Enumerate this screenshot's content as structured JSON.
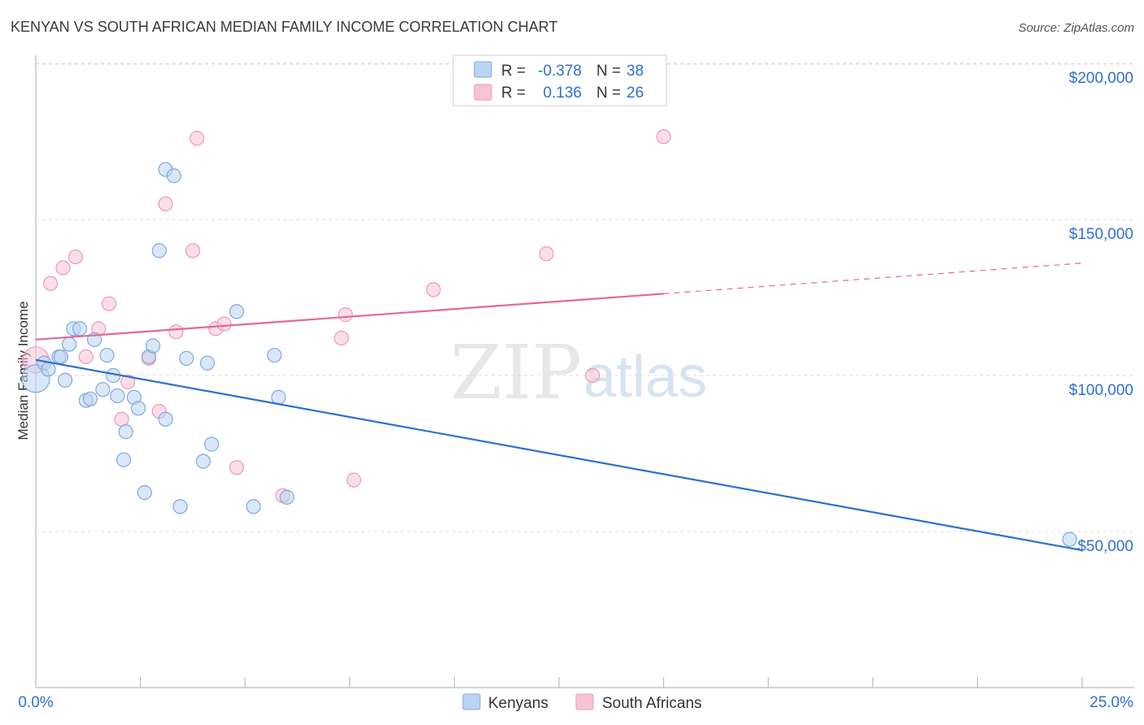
{
  "chart_data": {
    "type": "scatter",
    "title": "KENYAN VS SOUTH AFRICAN MEDIAN FAMILY INCOME CORRELATION CHART",
    "source": "Source: ZipAtlas.com",
    "xlabel": "",
    "ylabel": "Median Family Income",
    "xlim": [
      0,
      25
    ],
    "ylim": [
      0,
      205000
    ],
    "x_tick_labels": [
      "0.0%",
      "25.0%"
    ],
    "y_ticks": [
      50000,
      100000,
      150000,
      200000
    ],
    "y_tick_labels": [
      "$50,000",
      "$100,000",
      "$150,000",
      "$200,000"
    ],
    "watermark": {
      "zip": "ZIP",
      "atlas": "atlas"
    },
    "legend": {
      "rows": [
        {
          "r_label": "R =",
          "r_value": "-0.378",
          "n_label": "N =",
          "n_value": "38"
        },
        {
          "r_label": "R =",
          "r_value": "0.136",
          "n_label": "N =",
          "n_value": "26"
        }
      ]
    },
    "colors": {
      "kenyans_fill": "#bcd3f3",
      "kenyans_stroke": "#7ea9e0",
      "kenyans_line": "#2b6fd0",
      "south_africans_fill": "#f7c3d3",
      "south_africans_stroke": "#ec9ab5",
      "south_africans_line": "#e36a91",
      "value_text": "#2f6fd3",
      "grid": "#dddddd",
      "axis": "#bbbbbb"
    },
    "series": [
      {
        "name": "Kenyans",
        "trend": {
          "x_start": 0,
          "y_start": 105000,
          "x_end": 25,
          "y_end": 44000,
          "solid_until": 25
        },
        "points": [
          [
            0.0,
            99000
          ],
          [
            0.2,
            104000
          ],
          [
            0.3,
            102000
          ],
          [
            0.55,
            106000
          ],
          [
            0.6,
            106000
          ],
          [
            0.7,
            98500
          ],
          [
            0.8,
            110000
          ],
          [
            0.9,
            115000
          ],
          [
            1.05,
            115000
          ],
          [
            1.2,
            92000
          ],
          [
            1.3,
            92500
          ],
          [
            1.4,
            111500
          ],
          [
            1.6,
            95500
          ],
          [
            1.7,
            106500
          ],
          [
            1.85,
            100000
          ],
          [
            1.95,
            93500
          ],
          [
            2.1,
            73000
          ],
          [
            2.15,
            82000
          ],
          [
            2.35,
            93000
          ],
          [
            2.45,
            89500
          ],
          [
            2.6,
            62500
          ],
          [
            2.7,
            106000
          ],
          [
            2.8,
            109500
          ],
          [
            2.95,
            140000
          ],
          [
            3.1,
            86000
          ],
          [
            3.1,
            166000
          ],
          [
            3.3,
            164000
          ],
          [
            3.45,
            58000
          ],
          [
            3.6,
            105500
          ],
          [
            4.0,
            72500
          ],
          [
            4.1,
            104000
          ],
          [
            4.2,
            78000
          ],
          [
            4.8,
            120500
          ],
          [
            5.2,
            58000
          ],
          [
            5.7,
            106500
          ],
          [
            5.8,
            93000
          ],
          [
            6.0,
            61000
          ],
          [
            24.7,
            47500
          ]
        ]
      },
      {
        "name": "South Africans",
        "trend": {
          "x_start": 0,
          "y_start": 111500,
          "x_end": 25,
          "y_end": 136000,
          "solid_until": 15
        },
        "points": [
          [
            0.0,
            105000
          ],
          [
            0.35,
            129500
          ],
          [
            0.65,
            134500
          ],
          [
            0.95,
            138000
          ],
          [
            1.2,
            106000
          ],
          [
            1.5,
            115000
          ],
          [
            1.75,
            123000
          ],
          [
            2.05,
            86000
          ],
          [
            2.2,
            98000
          ],
          [
            2.7,
            105500
          ],
          [
            2.95,
            88500
          ],
          [
            3.1,
            155000
          ],
          [
            3.35,
            114000
          ],
          [
            3.75,
            140000
          ],
          [
            3.85,
            176000
          ],
          [
            4.3,
            115000
          ],
          [
            4.5,
            116500
          ],
          [
            4.8,
            70500
          ],
          [
            5.9,
            61500
          ],
          [
            7.3,
            112000
          ],
          [
            7.4,
            119500
          ],
          [
            7.6,
            66500
          ],
          [
            9.5,
            127500
          ],
          [
            12.2,
            139000
          ],
          [
            13.3,
            100000
          ],
          [
            15.0,
            176500
          ]
        ]
      }
    ]
  }
}
